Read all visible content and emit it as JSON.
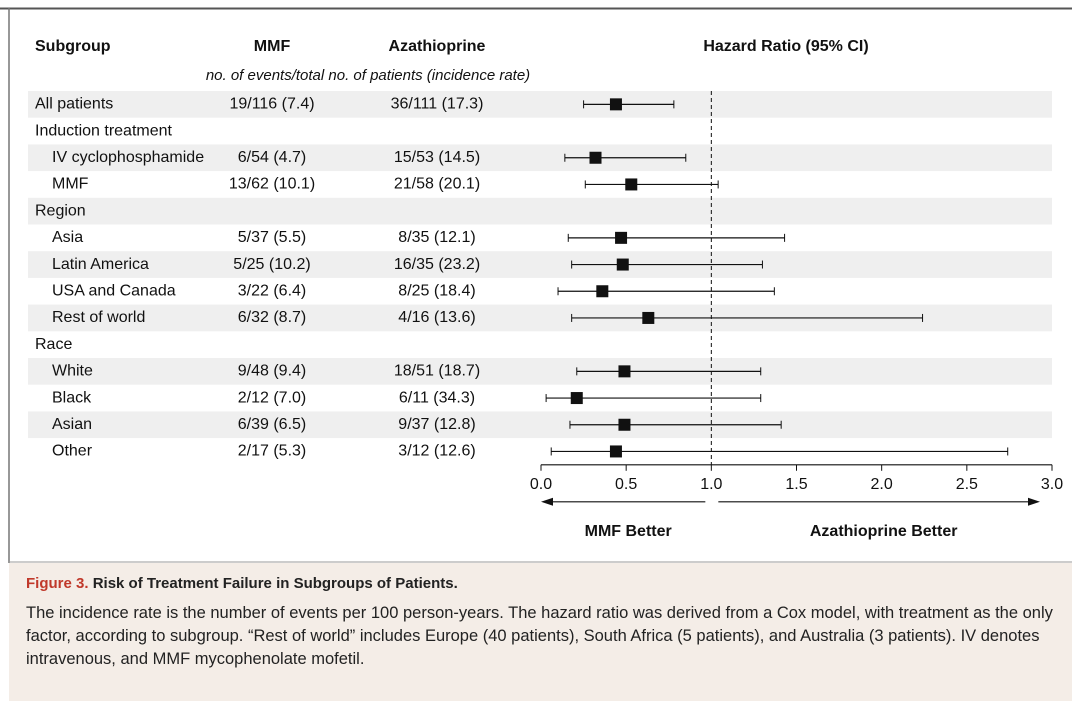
{
  "chart_data": {
    "type": "forest",
    "headers": [
      "Subgroup",
      "MMF",
      "Azathioprine",
      "Hazard Ratio (95% CI)"
    ],
    "subheader": "no. of events/total no. of patients (incidence rate)",
    "overall": {
      "label": "All patients",
      "mmf": "19/116 (7.4)",
      "aza": "36/111 (17.3)",
      "hr": 0.44,
      "ci_low": 0.25,
      "ci_high": 0.78
    },
    "groups": [
      {
        "label": "Induction treatment",
        "rows": [
          {
            "label": "IV cyclophosphamide",
            "mmf": "6/54 (4.7)",
            "aza": "15/53 (14.5)",
            "hr": 0.32,
            "ci_low": 0.14,
            "ci_high": 0.85
          },
          {
            "label": "MMF",
            "mmf": "13/62 (10.1)",
            "aza": "21/58 (20.1)",
            "hr": 0.53,
            "ci_low": 0.26,
            "ci_high": 1.04
          }
        ]
      },
      {
        "label": "Region",
        "rows": [
          {
            "label": "Asia",
            "mmf": "5/37 (5.5)",
            "aza": "8/35 (12.1)",
            "hr": 0.47,
            "ci_low": 0.16,
            "ci_high": 1.43
          },
          {
            "label": "Latin America",
            "mmf": "5/25 (10.2)",
            "aza": "16/35 (23.2)",
            "hr": 0.48,
            "ci_low": 0.18,
            "ci_high": 1.3
          },
          {
            "label": "USA and Canada",
            "mmf": "3/22 (6.4)",
            "aza": "8/25 (18.4)",
            "hr": 0.36,
            "ci_low": 0.1,
            "ci_high": 1.37
          },
          {
            "label": "Rest of world",
            "mmf": "6/32 (8.7)",
            "aza": "4/16 (13.6)",
            "hr": 0.63,
            "ci_low": 0.18,
            "ci_high": 2.24
          }
        ]
      },
      {
        "label": "Race",
        "rows": [
          {
            "label": "White",
            "mmf": "9/48 (9.4)",
            "aza": "18/51 (18.7)",
            "hr": 0.49,
            "ci_low": 0.21,
            "ci_high": 1.29
          },
          {
            "label": "Black",
            "mmf": "2/12 (7.0)",
            "aza": "6/11 (34.3)",
            "hr": 0.21,
            "ci_low": 0.03,
            "ci_high": 1.29
          },
          {
            "label": "Asian",
            "mmf": "6/39 (6.5)",
            "aza": "9/37 (12.8)",
            "hr": 0.49,
            "ci_low": 0.17,
            "ci_high": 1.41
          },
          {
            "label": "Other",
            "mmf": "2/17 (5.3)",
            "aza": "3/12 (12.6)",
            "hr": 0.44,
            "ci_low": 0.06,
            "ci_high": 2.74
          }
        ]
      }
    ],
    "xlim": [
      0,
      3
    ],
    "xticks": [
      {
        "value": 0,
        "label": "0.0"
      },
      0.5,
      {
        "value": 1,
        "label": "1.0"
      },
      1.5,
      {
        "value": 2,
        "label": "2.0"
      },
      2.5,
      {
        "value": 3,
        "label": "3.0"
      }
    ],
    "reference": 1,
    "left_label": "MMF Better",
    "right_label": "Azathioprine Better",
    "color": "#111111",
    "shade_color": "#efefef"
  },
  "caption": {
    "label": "Figure 3.",
    "title": "Risk of Treatment Failure in Subgroups of Patients.",
    "text": "The incidence rate is the number of events per 100 person-years. The hazard ratio was derived from a Cox model, with treatment as the only factor, according to subgroup. “Rest of world” includes Europe (40 patients), South Africa (5 patients), and Australia (3 patients). IV denotes intravenous, and MMF mycophenolate mofetil."
  }
}
